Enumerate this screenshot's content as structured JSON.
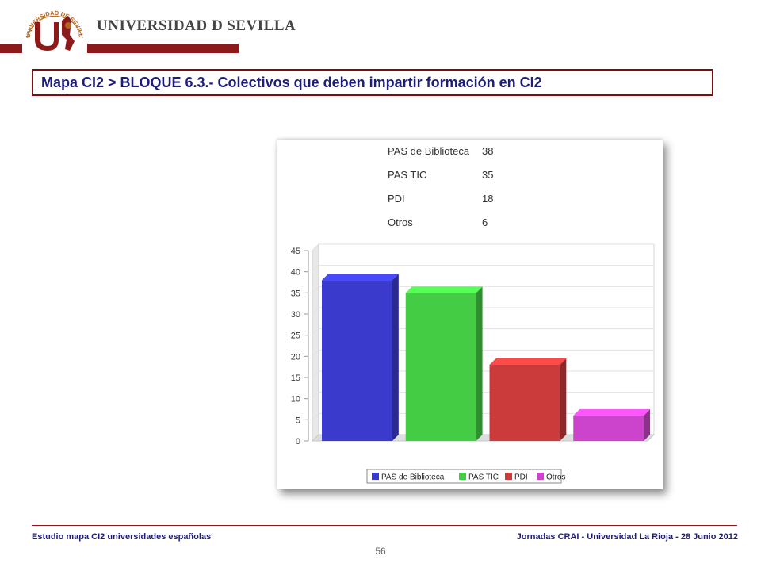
{
  "header": {
    "university_name": "UNIVERSIDAD Ð SEVILLA",
    "seal_text": "UNIVERSIDAD DE SEVILLA"
  },
  "title": "Mapa CI2 > BLOQUE 6.3.- Colectivos que deben impartir formación en CI2",
  "table": [
    {
      "label": "PAS de Biblioteca",
      "value": "38"
    },
    {
      "label": "PAS TIC",
      "value": "35"
    },
    {
      "label": "PDI",
      "value": "18"
    },
    {
      "label": "Otros",
      "value": "6"
    }
  ],
  "chart_data": {
    "type": "bar",
    "categories": [
      "PAS de Biblioteca",
      "PAS TIC",
      "PDI",
      "Otros"
    ],
    "values": [
      38,
      35,
      18,
      6
    ],
    "colors": [
      "#3a3acc",
      "#44cc44",
      "#cc3b3b",
      "#cc44cc"
    ],
    "ylim": [
      0,
      45
    ],
    "yticks": [
      "0",
      "5",
      "10",
      "15",
      "20",
      "25",
      "30",
      "35",
      "40",
      "45"
    ],
    "grid": true,
    "legend_placement": "bottom",
    "title": "",
    "xlabel": "",
    "ylabel": ""
  },
  "footer": {
    "left": "Estudio mapa CI2 universidades españolas",
    "right": "Jornadas CRAI - Universidad La Rioja - 28 Junio 2012",
    "page_number": "56"
  }
}
